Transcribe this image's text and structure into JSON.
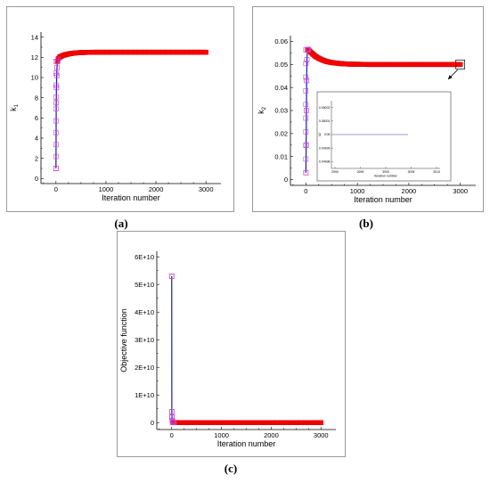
{
  "colors": {
    "line": "#1a1aaa",
    "marker_fill": "#ff0000",
    "marker_stroke": "#cc0000",
    "open_marker": "#cc44cc",
    "inset_line": "#8877bb"
  },
  "chart_data": [
    {
      "id": "a",
      "caption": "(a)",
      "type": "line",
      "xlabel": "Iteration number",
      "ylabel": "k1",
      "ylabel_main": "k",
      "ylabel_sub": "1",
      "xlim": [
        -300,
        3300
      ],
      "ylim": [
        -0.5,
        14.5
      ],
      "xticks": [
        0,
        1000,
        2000,
        3000
      ],
      "yticks": [
        0,
        2,
        4,
        6,
        8,
        10,
        12,
        14
      ],
      "series": [
        {
          "x": [
            0,
            5,
            10,
            15,
            20,
            30,
            40,
            60,
            80,
            100,
            150,
            200,
            300,
            400,
            500,
            600,
            800,
            1000,
            1500,
            2000,
            2500,
            3000
          ],
          "y": [
            1.0,
            7.5,
            9.0,
            10.2,
            11.0,
            11.6,
            11.8,
            11.95,
            12.05,
            12.1,
            12.2,
            12.28,
            12.38,
            12.44,
            12.47,
            12.49,
            12.5,
            12.5,
            12.5,
            12.5,
            12.5,
            12.5
          ]
        }
      ]
    },
    {
      "id": "b",
      "caption": "(b)",
      "type": "line",
      "xlabel": "Iteration number",
      "ylabel": "k2",
      "ylabel_main": "k",
      "ylabel_sub": "2",
      "xlim": [
        -300,
        3300
      ],
      "ylim": [
        -0.0025,
        0.0625
      ],
      "xticks": [
        0,
        1000,
        2000,
        3000
      ],
      "yticks": [
        0,
        0.01,
        0.02,
        0.03,
        0.04,
        0.05,
        0.06
      ],
      "ytick_labels": [
        "0",
        "0.01",
        "0.02",
        "0.03",
        "0.04",
        "0.05",
        "0.06"
      ],
      "series": [
        {
          "x": [
            0,
            5,
            10,
            15,
            20,
            30,
            40,
            50,
            60,
            80,
            100,
            150,
            200,
            300,
            400,
            500,
            700,
            900,
            1200,
            1500,
            2000,
            2500,
            3000
          ],
          "y": [
            0.003,
            0.015,
            0.03,
            0.043,
            0.052,
            0.0563,
            0.0565,
            0.0565,
            0.0562,
            0.0557,
            0.0552,
            0.0542,
            0.0533,
            0.0521,
            0.0513,
            0.0508,
            0.0503,
            0.0501,
            0.05,
            0.05,
            0.05,
            0.05,
            0.05
          ]
        }
      ],
      "inset": {
        "xlabel": "Iteration number",
        "ylabel": "k2",
        "xticks": [
          2990,
          2995,
          3000,
          3005,
          3010
        ],
        "yticks": [
          "0.04998",
          "0.04999",
          "0.05",
          "0.05001",
          "0.05002"
        ],
        "value": 0.05
      }
    },
    {
      "id": "c",
      "caption": "(c)",
      "type": "line",
      "xlabel": "Iteration number",
      "ylabel": "Objective function",
      "xlim": [
        -300,
        3300
      ],
      "ylim": [
        -2500000000.0,
        62000000000.0
      ],
      "xticks": [
        0,
        1000,
        2000,
        3000
      ],
      "yticks": [
        0,
        10000000000,
        20000000000,
        30000000000,
        40000000000,
        50000000000,
        60000000000
      ],
      "ytick_labels": [
        "0",
        "1E+10",
        "2E+10",
        "3E+10",
        "4E+10",
        "5E+10",
        "6E+10"
      ],
      "series": [
        {
          "x": [
            0,
            2,
            5,
            10,
            15,
            20,
            30,
            50,
            100,
            200,
            500,
            1000,
            1500,
            2000,
            2500,
            3000
          ],
          "y": [
            53000000000,
            4000000000,
            2000000000,
            800000000,
            300000000,
            100000000,
            50000000,
            20000000,
            5000000,
            1000000,
            0,
            0,
            0,
            0,
            0,
            0
          ]
        }
      ]
    }
  ]
}
